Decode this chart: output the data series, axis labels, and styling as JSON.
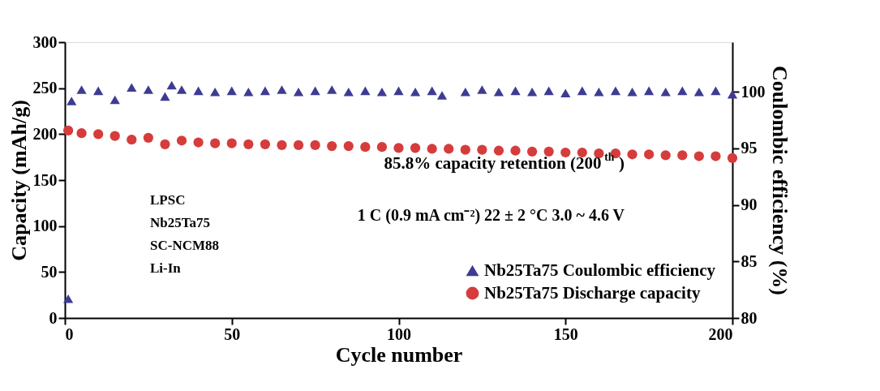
{
  "chart_data": {
    "type": "scatter",
    "xlabel": "Cycle number",
    "ylabel": "Capacity (mAh/g)",
    "y2label": "Coulombic efficiency (%)",
    "xlim": [
      0,
      200
    ],
    "xticks": [
      0,
      50,
      100,
      150,
      200
    ],
    "ylim": [
      0,
      300
    ],
    "yticks": [
      0,
      50,
      100,
      150,
      200,
      250,
      300
    ],
    "y2lim": [
      80,
      104.4
    ],
    "y2ticks": [
      80,
      85,
      90,
      95,
      100
    ],
    "legend": "bottom right",
    "grid": false,
    "series": [
      {
        "name": "Nb25Ta75 Coulombic efficiency",
        "color": "#3f3b94",
        "marker": "triangle",
        "axis": "y2",
        "x": [
          1,
          2,
          5,
          10,
          15,
          20,
          25,
          30,
          32,
          35,
          40,
          45,
          50,
          55,
          60,
          65,
          70,
          75,
          80,
          85,
          90,
          95,
          100,
          105,
          110,
          113,
          120,
          125,
          130,
          135,
          140,
          145,
          150,
          155,
          160,
          165,
          170,
          175,
          180,
          185,
          190,
          195,
          200
        ],
        "values": [
          81.7,
          99.2,
          100.2,
          100.1,
          99.3,
          100.4,
          100.2,
          99.6,
          100.6,
          100.2,
          100.1,
          100.0,
          100.1,
          100.0,
          100.1,
          100.2,
          100.0,
          100.1,
          100.2,
          100.0,
          100.1,
          100.0,
          100.1,
          100.0,
          100.1,
          99.7,
          100.0,
          100.2,
          100.0,
          100.1,
          100.0,
          100.1,
          99.9,
          100.1,
          100.0,
          100.1,
          100.0,
          100.1,
          100.0,
          100.1,
          100.0,
          100.1,
          99.8
        ]
      },
      {
        "name": "Nb25Ta75  Discharge capacity",
        "color": "#d63c3c",
        "marker": "circle",
        "x": [
          1,
          5,
          10,
          15,
          20,
          25,
          30,
          35,
          40,
          45,
          50,
          55,
          60,
          65,
          70,
          75,
          80,
          85,
          90,
          95,
          100,
          105,
          110,
          115,
          120,
          125,
          130,
          135,
          140,
          145,
          150,
          155,
          160,
          165,
          170,
          175,
          180,
          185,
          190,
          195,
          200
        ],
        "values": [
          204,
          201,
          200,
          198,
          194,
          196,
          189,
          193,
          191,
          190,
          190,
          189,
          189,
          188,
          188,
          188,
          187,
          187,
          186,
          186,
          185,
          185,
          184,
          184,
          183,
          183,
          182,
          182,
          181,
          181,
          180,
          180,
          179,
          179,
          178,
          178,
          177,
          177,
          176,
          176,
          174
        ]
      }
    ],
    "annotations": [
      "85.8% capacity retention (200$^{th}$)",
      "1 C (0.9 mA cm⁻²)  22 ± 2 °C  3.0 ~ 4.6 V",
      "LPSC",
      "Nb25Ta75",
      "SC-NCM88",
      "Li-In"
    ]
  }
}
